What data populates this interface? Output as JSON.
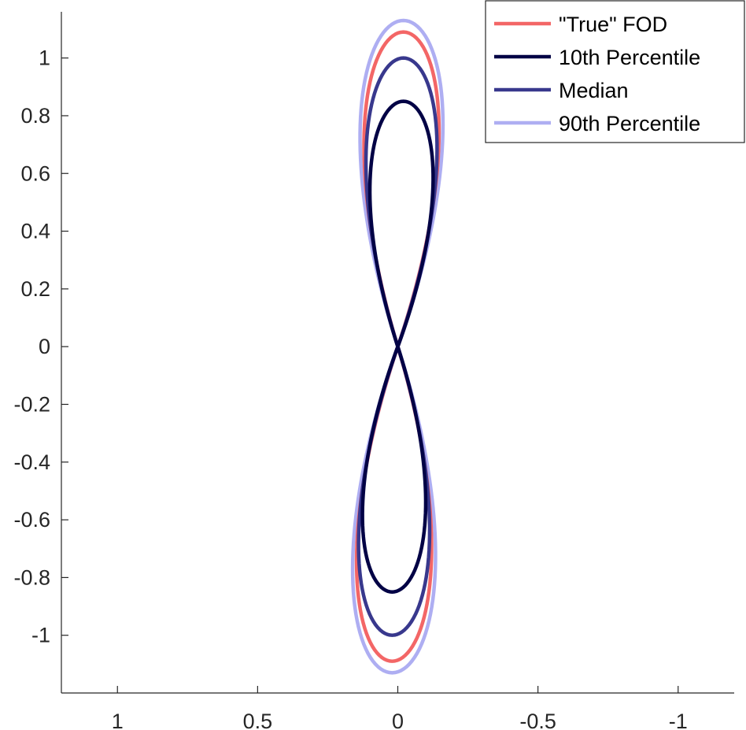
{
  "chart_data": {
    "type": "line",
    "title": "",
    "xlabel": "",
    "ylabel": "",
    "x_reversed": true,
    "xlim": [
      1.2,
      -1.2
    ],
    "ylim": [
      -1.2,
      1.16
    ],
    "x_ticks": [
      1,
      0.5,
      0,
      -0.5,
      -1
    ],
    "x_tick_labels": [
      "1",
      "0.5",
      "0",
      "-0.5",
      "-1"
    ],
    "y_ticks": [
      1,
      0.8,
      0.6,
      0.4,
      0.2,
      0,
      -0.2,
      -0.4,
      -0.6,
      -0.8,
      -1
    ],
    "y_tick_labels": [
      "1",
      "0.8",
      "0.6",
      "0.4",
      "0.2",
      "0",
      "-0.2",
      "-0.4",
      "-0.6",
      "-0.8",
      "-1"
    ],
    "grid": false,
    "legend_position": "top-right",
    "series": [
      {
        "name": "\"True\" FOD",
        "color": "#f36666",
        "shape": "lobes",
        "peak_y": 1.09,
        "half_width_x": 0.19,
        "tilt_x": 0.02
      },
      {
        "name": "10th Percentile",
        "color": "#020245",
        "shape": "lobes",
        "peak_y": 0.85,
        "half_width_x": 0.16,
        "tilt_x": 0.02
      },
      {
        "name": "Median",
        "color": "#38388d",
        "shape": "lobes",
        "peak_y": 1.0,
        "half_width_x": 0.18,
        "tilt_x": 0.02
      },
      {
        "name": "90th Percentile",
        "color": "#aeaef2",
        "shape": "lobes",
        "peak_y": 1.13,
        "half_width_x": 0.21,
        "tilt_x": 0.02
      }
    ]
  }
}
